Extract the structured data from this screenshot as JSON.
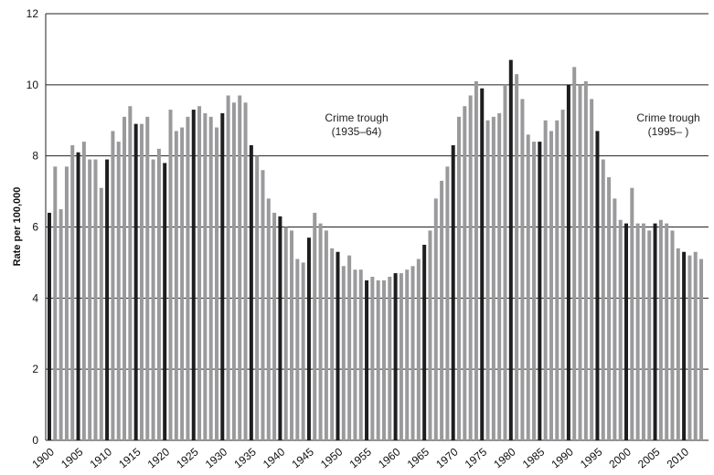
{
  "chart_data": {
    "type": "bar",
    "title": "",
    "xlabel": "",
    "ylabel": "Rate per 100,000",
    "ylim": [
      0,
      12
    ],
    "yticks": [
      0,
      2,
      4,
      6,
      8,
      10,
      12
    ],
    "grid": true,
    "x_start": 1900,
    "xtick_labels": [
      "1900",
      "1905",
      "1910",
      "1915",
      "1920",
      "1925",
      "1930",
      "1935",
      "1940",
      "1945",
      "1950",
      "1955",
      "1960",
      "1965",
      "1970",
      "1975",
      "1980",
      "1985",
      "1990",
      "1995",
      "2000",
      "2005",
      "2010"
    ],
    "highlight_every": 5,
    "values": [
      6.4,
      7.7,
      6.5,
      7.7,
      8.3,
      8.1,
      8.4,
      7.9,
      7.9,
      7.1,
      7.9,
      8.7,
      8.4,
      9.1,
      9.4,
      8.9,
      8.9,
      9.1,
      7.9,
      8.2,
      7.8,
      9.3,
      8.7,
      8.8,
      9.1,
      9.3,
      9.4,
      9.2,
      9.1,
      8.8,
      9.2,
      9.7,
      9.5,
      9.7,
      9.5,
      8.3,
      8.0,
      7.6,
      6.8,
      6.4,
      6.3,
      6.0,
      5.9,
      5.1,
      5.0,
      5.7,
      6.4,
      6.1,
      5.9,
      5.4,
      5.3,
      4.9,
      5.2,
      4.8,
      4.8,
      4.5,
      4.6,
      4.5,
      4.5,
      4.6,
      4.7,
      4.7,
      4.8,
      4.9,
      5.1,
      5.5,
      5.9,
      6.8,
      7.3,
      7.7,
      8.3,
      9.1,
      9.4,
      9.7,
      10.1,
      9.9,
      9.0,
      9.1,
      9.2,
      10.0,
      10.7,
      10.3,
      9.6,
      8.6,
      8.4,
      8.4,
      9.0,
      8.7,
      9.0,
      9.3,
      10.0,
      10.5,
      10.0,
      10.1,
      9.6,
      8.7,
      7.9,
      7.4,
      6.8,
      6.2,
      6.1,
      7.1,
      6.1,
      6.1,
      5.9,
      6.1,
      6.2,
      6.1,
      5.9,
      5.4,
      5.3,
      5.2,
      5.3,
      5.1
    ],
    "annotations": [
      {
        "line1": "Crime trough",
        "line2": "(1935–64)"
      },
      {
        "line1": "Crime trough",
        "line2": "(1995– )"
      }
    ],
    "colors": {
      "bar": "#9a9a9c",
      "highlight": "#1e1e1e",
      "grid": "#222222"
    }
  }
}
